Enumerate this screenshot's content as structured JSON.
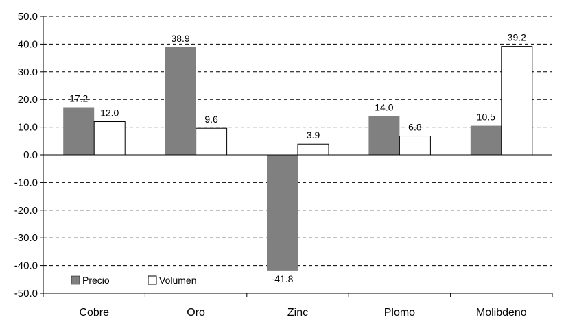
{
  "chart_data": {
    "type": "bar",
    "categories": [
      "Cobre",
      "Oro",
      "Zinc",
      "Plomo",
      "Molibdeno"
    ],
    "series": [
      {
        "name": "Precio",
        "values": [
          17.2,
          38.9,
          -41.8,
          14.0,
          10.5
        ],
        "color": "#808080"
      },
      {
        "name": "Volumen",
        "values": [
          12.0,
          9.6,
          3.9,
          6.8,
          39.2
        ],
        "color": "#ffffff"
      }
    ],
    "value_labels": [
      [
        "17.2",
        "38.9",
        "-41.8",
        "14.0",
        "10.5"
      ],
      [
        "12.0",
        "9.6",
        "3.9",
        "6.8",
        "39.2"
      ]
    ],
    "title": "",
    "xlabel": "",
    "ylabel": "",
    "ylim": [
      -50,
      50
    ],
    "yticks": [
      50,
      40,
      30,
      20,
      10,
      0,
      -10,
      -20,
      -30,
      -40,
      -50
    ],
    "ytick_labels": [
      "50.0",
      "40.0",
      "30.0",
      "20.0",
      "10.0",
      "0.0",
      "-10.0",
      "-20.0",
      "-30.0",
      "-40.0",
      "-50.0"
    ],
    "grid": "horizontal-dashed",
    "legend_position": "bottom-left"
  }
}
